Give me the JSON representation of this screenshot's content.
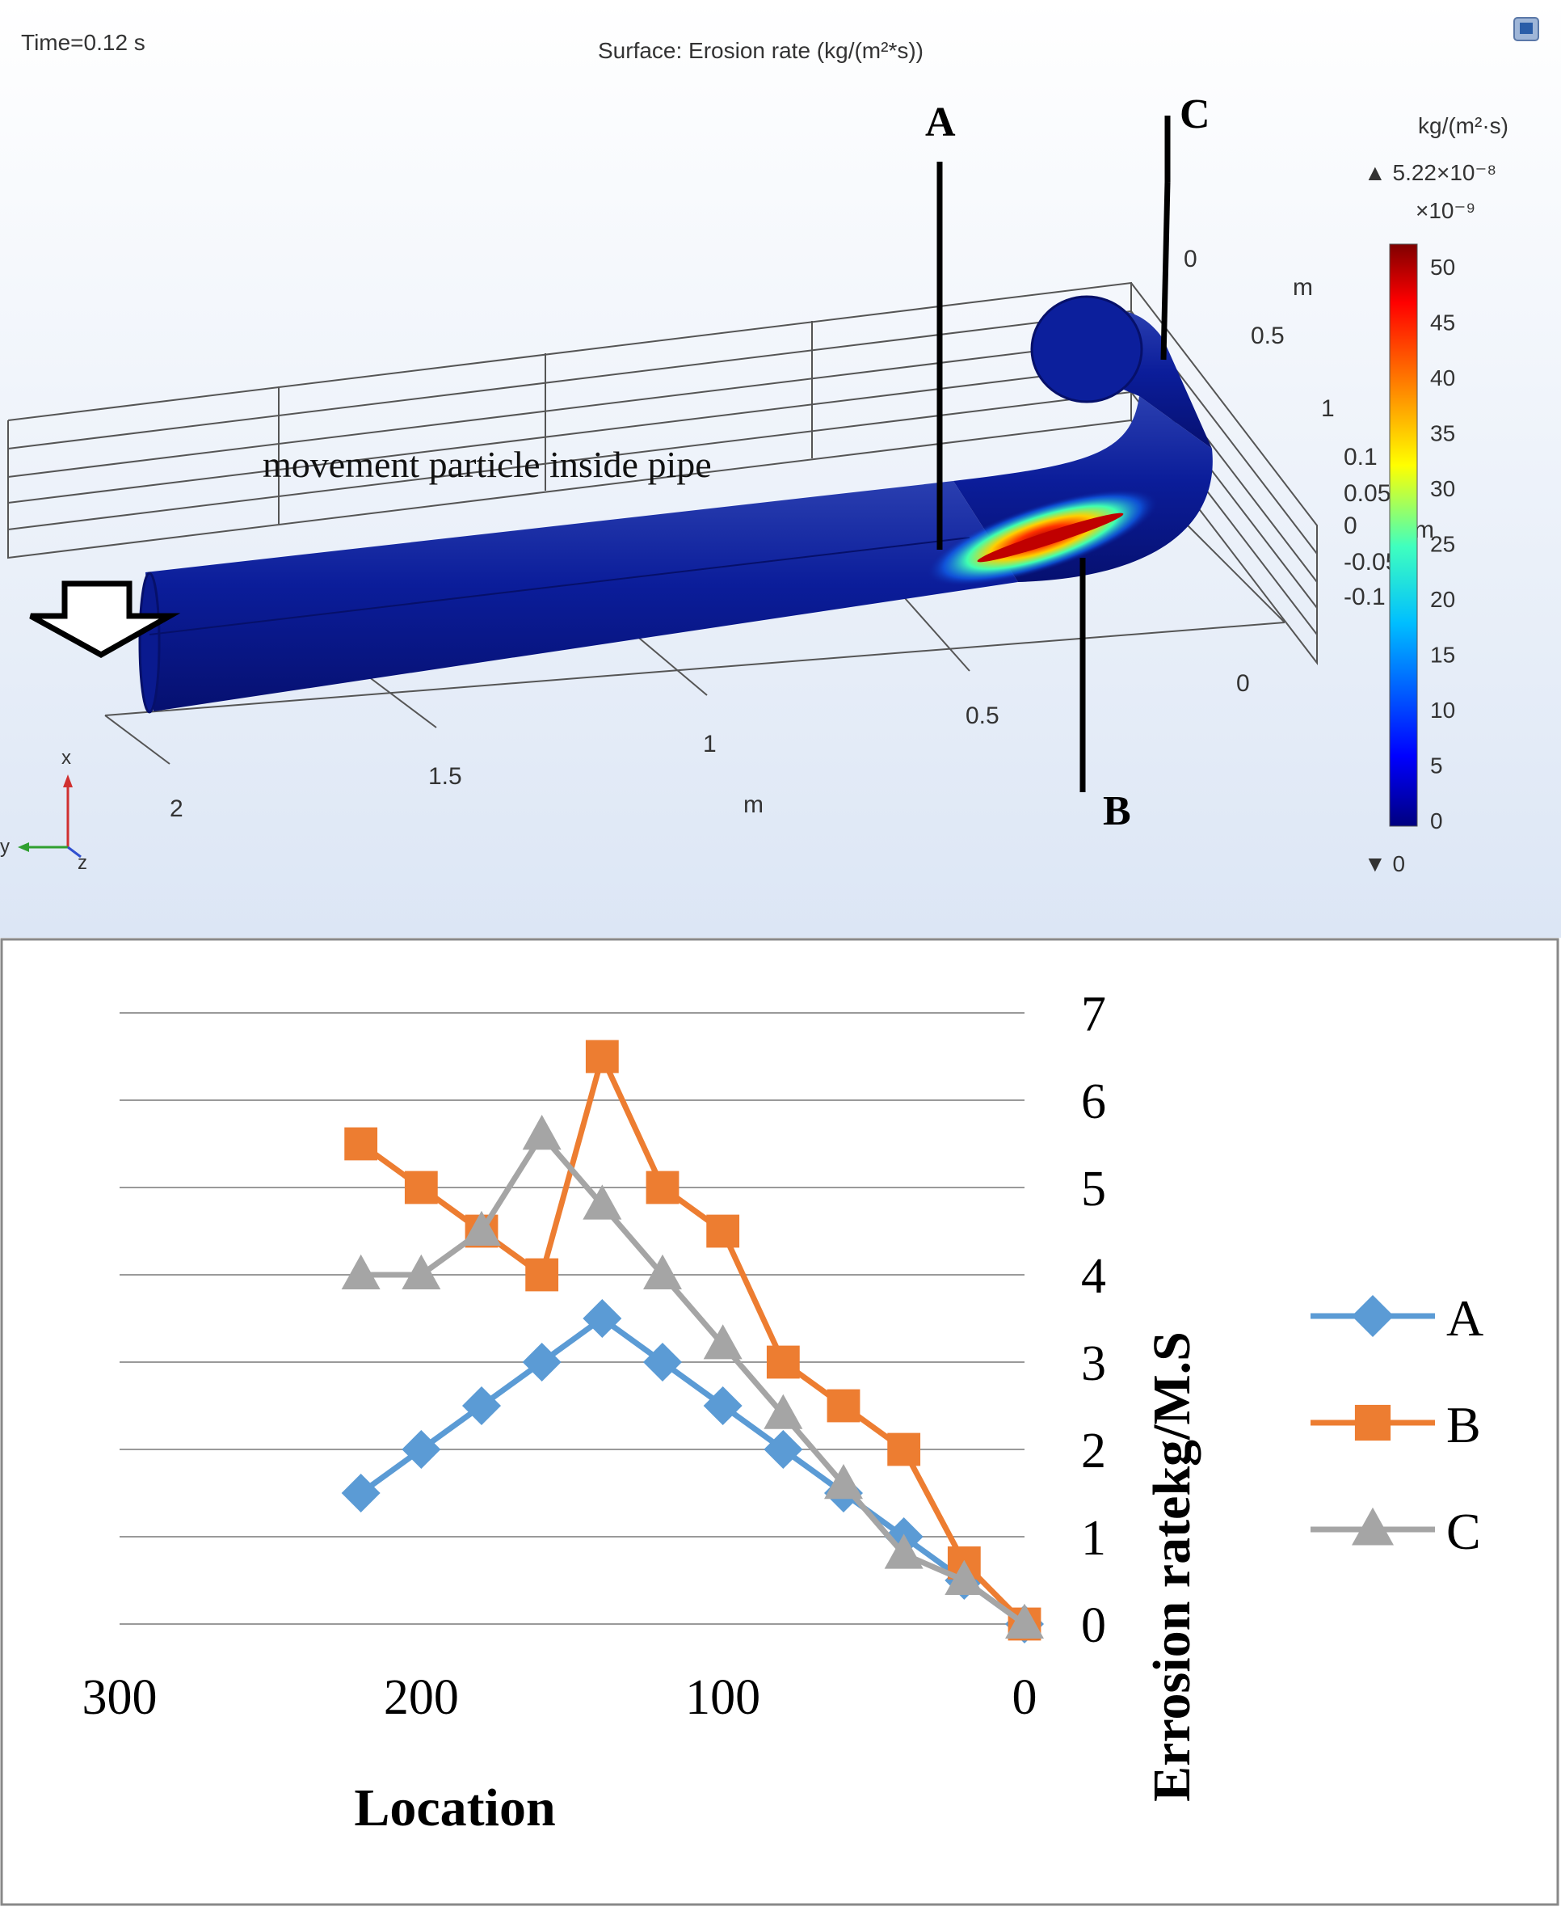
{
  "sim": {
    "time_label": "Time=0.12 s",
    "surface_title": "Surface: Erosion rate (kg/(m²*s))",
    "caption": "movement particle inside pipe",
    "section_labels": [
      "A",
      "B",
      "C"
    ],
    "axis_unit": "m",
    "x_ticks": [
      "2",
      "1.5",
      "1",
      "0.5"
    ],
    "y_ticks": [
      "0",
      "0.5",
      "1"
    ],
    "z_ticks": [
      "0.1",
      "0.05",
      "0",
      "-0.05",
      "-0.1"
    ],
    "right_zero": "0",
    "triad": {
      "x": "x",
      "y": "y",
      "z": "z"
    },
    "colorbar": {
      "unit": "kg/(m²·s)",
      "max_label": "▲ 5.22×10⁻⁸",
      "multiplier": "×10⁻⁹",
      "ticks": [
        "50",
        "45",
        "40",
        "35",
        "30",
        "25",
        "20",
        "15",
        "10",
        "5",
        "0"
      ],
      "min_label": "▼ 0",
      "colors": [
        "#00007f",
        "#0000ff",
        "#00bfff",
        "#3fffbf",
        "#ffff00",
        "#ff7f00",
        "#ff0000",
        "#7f0000"
      ]
    }
  },
  "chart_data": {
    "type": "line",
    "title": "",
    "xlabel": "Location",
    "ylabel": "Errosion ratekg/M.S",
    "xlim": [
      300,
      0
    ],
    "ylim": [
      0,
      7
    ],
    "x_ticks": [
      300,
      200,
      100,
      0
    ],
    "y_ticks": [
      0,
      1,
      2,
      3,
      4,
      5,
      6,
      7
    ],
    "x_reversed": true,
    "y_axis_side": "right",
    "grid": "horizontal",
    "legend_position": "right",
    "series": [
      {
        "name": "A",
        "marker": "diamond",
        "color": "#5b9bd5",
        "x": [
          220,
          200,
          180,
          160,
          140,
          120,
          100,
          80,
          60,
          40,
          20,
          0
        ],
        "y": [
          1.5,
          2.0,
          2.5,
          3.0,
          3.5,
          3.0,
          2.5,
          2.0,
          1.5,
          1.0,
          0.5,
          0.0
        ]
      },
      {
        "name": "B",
        "marker": "square",
        "color": "#ed7d31",
        "x": [
          220,
          200,
          180,
          160,
          140,
          120,
          100,
          80,
          60,
          40,
          20,
          0
        ],
        "y": [
          5.5,
          5.0,
          4.5,
          4.0,
          6.5,
          5.0,
          4.5,
          3.0,
          2.5,
          2.0,
          0.7,
          0.0
        ]
      },
      {
        "name": "C",
        "marker": "triangle",
        "color": "#a5a5a5",
        "x": [
          220,
          200,
          180,
          160,
          140,
          120,
          100,
          80,
          60,
          40,
          20,
          0
        ],
        "y": [
          4.0,
          4.0,
          4.5,
          5.6,
          4.8,
          4.0,
          3.2,
          2.4,
          1.6,
          0.8,
          0.5,
          0.0
        ]
      }
    ]
  }
}
